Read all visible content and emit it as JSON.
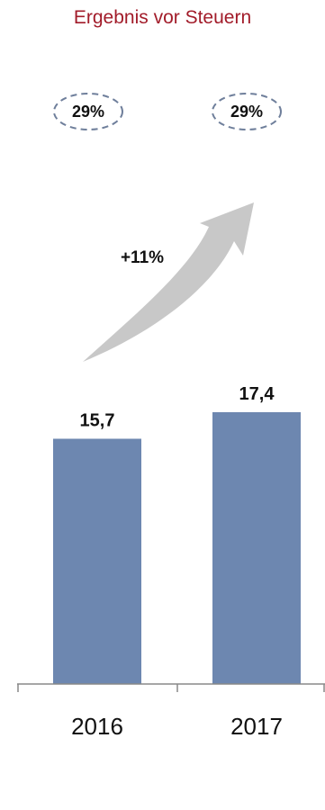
{
  "colors": {
    "title": "#a21c2a",
    "bar": "#6d87b0",
    "arrow": "#c8c8c8",
    "badge_border": "#6f7f9b",
    "axis": "#888888"
  },
  "badges": [
    {
      "label": "29%"
    },
    {
      "label": "29%"
    }
  ],
  "growth": {
    "label": "+11%"
  },
  "chart_data": {
    "type": "bar",
    "title": "Ergebnis vor Steuern",
    "categories": [
      "2016",
      "2017"
    ],
    "values": [
      15.7,
      17.4
    ],
    "value_labels": [
      "15,7",
      "17,4"
    ],
    "ylim": [
      0,
      17.4
    ],
    "grid": false,
    "legend": "none"
  }
}
